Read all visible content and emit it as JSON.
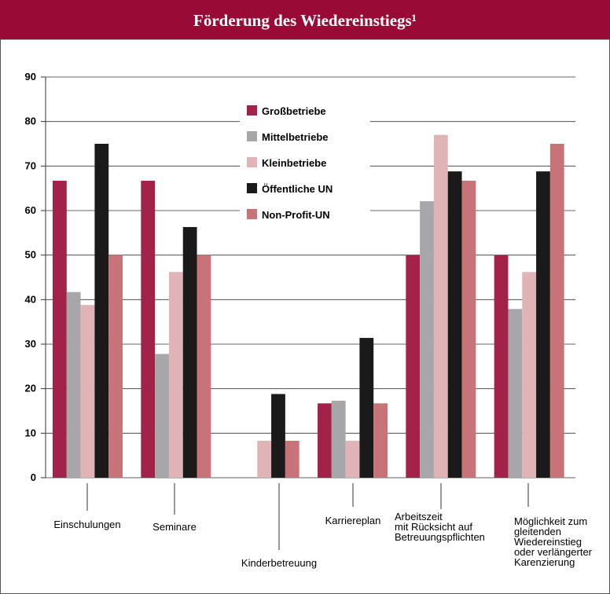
{
  "chart_data": {
    "type": "bar",
    "title": "Förderung des Wiedereinstiegs¹",
    "categories": [
      "Einschulungen",
      "Seminare",
      "Kinderbetreuung",
      "Karriereplan",
      "Arbeitszeit\nmit Rücksicht auf\nBetreuungspflichten",
      "Möglichkeit zum\ngleitenden\nWiedereinstieg\noder verlängerter\nKarenzierung"
    ],
    "series": [
      {
        "name": "Großbetriebe",
        "color": "#a3224a",
        "values": [
          66.7,
          66.7,
          0,
          16.7,
          50,
          50
        ]
      },
      {
        "name": "Mittelbetriebe",
        "color": "#a7a7a9",
        "values": [
          41.7,
          27.8,
          0,
          17.3,
          62.1,
          37.9
        ]
      },
      {
        "name": "Kleinbetriebe",
        "color": "#e0b4b6",
        "values": [
          38.8,
          46.2,
          8.3,
          8.3,
          77,
          46.2
        ]
      },
      {
        "name": "Öffentliche UN",
        "color": "#1a1a1a",
        "values": [
          75,
          56.3,
          18.8,
          31.4,
          68.8,
          68.8
        ]
      },
      {
        "name": "Non-Profit-UN",
        "color": "#c77378",
        "values": [
          50,
          50,
          8.3,
          16.7,
          66.7,
          75
        ]
      }
    ],
    "ylim": [
      0,
      90
    ],
    "yticks": [
      0,
      10,
      20,
      30,
      40,
      50,
      60,
      70,
      80,
      90
    ],
    "grid": true
  }
}
